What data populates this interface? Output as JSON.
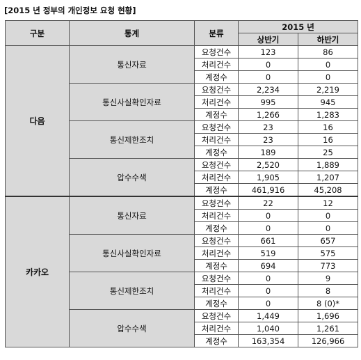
{
  "title": "[2015 년 정부의 개인정보 요청 현황]",
  "headers": {
    "gubun": "구분",
    "tonggye": "통계",
    "bunryu": "분류",
    "year": "2015 년",
    "h1": "상반기",
    "h2": "하반기"
  },
  "groups": [
    {
      "name": "다음",
      "categories": [
        {
          "name": "통신자료",
          "rows": [
            {
              "label": "요청건수",
              "h1": "123",
              "h2": "86"
            },
            {
              "label": "처리건수",
              "h1": "0",
              "h2": "0"
            },
            {
              "label": "계정수",
              "h1": "0",
              "h2": "0"
            }
          ]
        },
        {
          "name": "통신사실확인자료",
          "rows": [
            {
              "label": "요청건수",
              "h1": "2,234",
              "h2": "2,219"
            },
            {
              "label": "처리건수",
              "h1": "995",
              "h2": "945"
            },
            {
              "label": "계정수",
              "h1": "1,266",
              "h2": "1,283"
            }
          ]
        },
        {
          "name": "통신제한조치",
          "rows": [
            {
              "label": "요청건수",
              "h1": "23",
              "h2": "16"
            },
            {
              "label": "처리건수",
              "h1": "23",
              "h2": "16"
            },
            {
              "label": "계정수",
              "h1": "189",
              "h2": "25"
            }
          ]
        },
        {
          "name": "압수수색",
          "rows": [
            {
              "label": "요청건수",
              "h1": "2,520",
              "h2": "1,889"
            },
            {
              "label": "처리건수",
              "h1": "1,905",
              "h2": "1,207"
            },
            {
              "label": "계정수",
              "h1": "461,916",
              "h2": "45,208"
            }
          ]
        }
      ]
    },
    {
      "name": "카카오",
      "categories": [
        {
          "name": "통신자료",
          "rows": [
            {
              "label": "요청건수",
              "h1": "22",
              "h2": "12"
            },
            {
              "label": "처리건수",
              "h1": "0",
              "h2": "0"
            },
            {
              "label": "계정수",
              "h1": "0",
              "h2": "0"
            }
          ]
        },
        {
          "name": "통신사실확인자료",
          "rows": [
            {
              "label": "요청건수",
              "h1": "661",
              "h2": "657"
            },
            {
              "label": "처리건수",
              "h1": "519",
              "h2": "575"
            },
            {
              "label": "계정수",
              "h1": "694",
              "h2": "773"
            }
          ]
        },
        {
          "name": "통신제한조치",
          "rows": [
            {
              "label": "요청건수",
              "h1": "0",
              "h2": "9"
            },
            {
              "label": "처리건수",
              "h1": "0",
              "h2": "8"
            },
            {
              "label": "계정수",
              "h1": "0",
              "h2": "8 (0)*"
            }
          ]
        },
        {
          "name": "압수수색",
          "rows": [
            {
              "label": "요청건수",
              "h1": "1,449",
              "h2": "1,696"
            },
            {
              "label": "처리건수",
              "h1": "1,040",
              "h2": "1,261"
            },
            {
              "label": "계정수",
              "h1": "163,354",
              "h2": "126,966"
            }
          ]
        }
      ]
    }
  ]
}
